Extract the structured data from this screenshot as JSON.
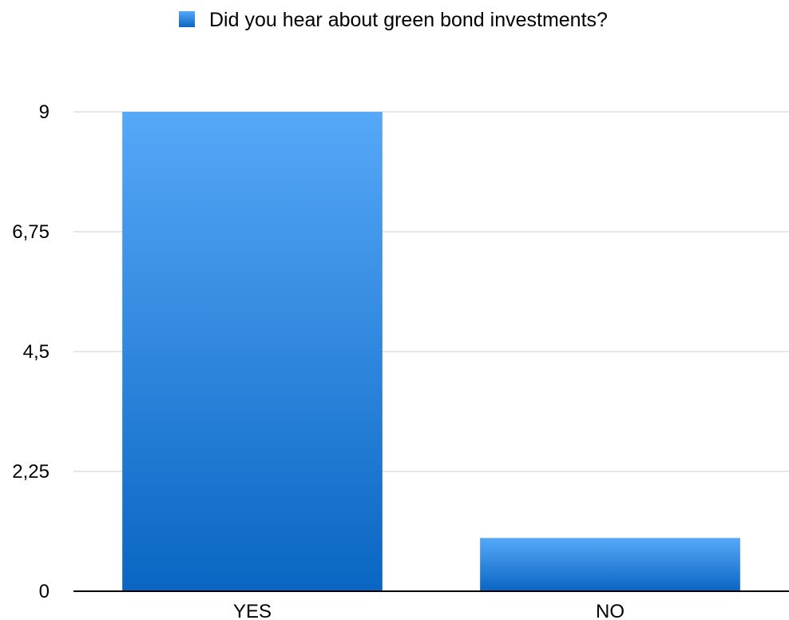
{
  "chart_data": {
    "type": "bar",
    "categories": [
      "YES",
      "NO"
    ],
    "series": [
      {
        "name": "Did you hear about green bond investments?",
        "values": [
          9,
          1
        ],
        "color": "#2a86e0"
      }
    ],
    "ylim": [
      0,
      9
    ],
    "yticks": [
      0,
      2.25,
      4.5,
      6.75,
      9
    ],
    "ytick_labels": [
      "0",
      "2,25",
      "4,5",
      "6,75",
      "9"
    ],
    "grid": true,
    "legend_position": "top-center",
    "colors": {
      "bar_top": "#56a8f8",
      "bar_bottom": "#0a66c2",
      "grid": "#cfcfcf",
      "axis": "#000000"
    }
  }
}
